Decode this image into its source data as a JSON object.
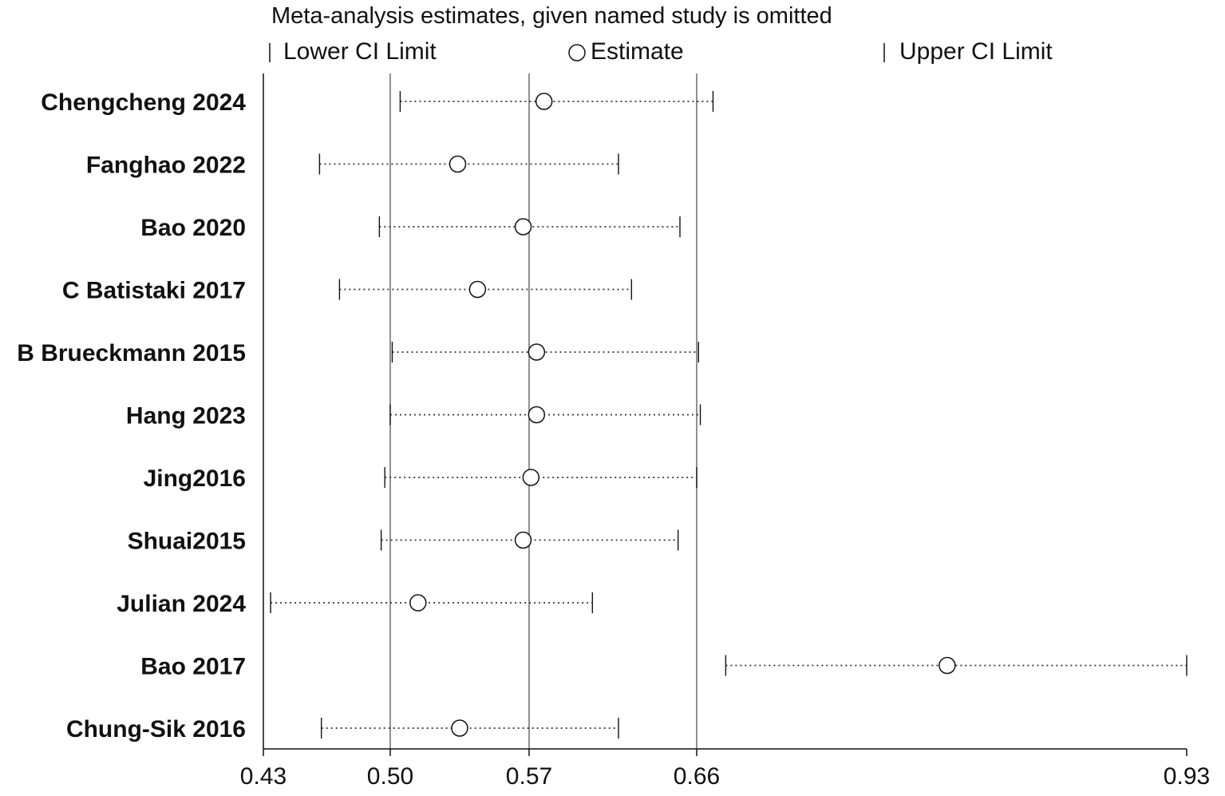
{
  "chart_data": {
    "type": "forest",
    "title": "Meta-analysis estimates, given named study is omitted",
    "legend": {
      "lower": "Lower CI Limit",
      "estimate": "Estimate",
      "upper": "Upper CI Limit"
    },
    "x_ticks": [
      {
        "value": 0.43,
        "label": "0.43"
      },
      {
        "value": 0.5,
        "label": "0.50"
      },
      {
        "value": 0.57,
        "label": "0.57"
      },
      {
        "value": 0.66,
        "label": "0.66"
      },
      {
        "value": 0.93,
        "label": "0.93"
      }
    ],
    "xlim": [
      0.43,
      0.93
    ],
    "reference_lines": [
      0.5,
      0.57,
      0.66
    ],
    "studies": [
      {
        "label": "Chengcheng 2024",
        "lower": 0.505,
        "estimate": 0.578,
        "upper": 0.669
      },
      {
        "label": "Fanghao 2022",
        "lower": 0.461,
        "estimate": 0.534,
        "upper": 0.618
      },
      {
        "label": "Bao 2020",
        "lower": 0.494,
        "estimate": 0.567,
        "upper": 0.651
      },
      {
        "label": "C Batistaki 2017",
        "lower": 0.472,
        "estimate": 0.544,
        "upper": 0.625
      },
      {
        "label": "B Brueckmann 2015",
        "lower": 0.501,
        "estimate": 0.574,
        "upper": 0.661
      },
      {
        "label": "Hang 2023",
        "lower": 0.5,
        "estimate": 0.574,
        "upper": 0.662
      },
      {
        "label": "Jing2016",
        "lower": 0.497,
        "estimate": 0.571,
        "upper": 0.66
      },
      {
        "label": "Shuai2015",
        "lower": 0.495,
        "estimate": 0.567,
        "upper": 0.65
      },
      {
        "label": "Julian 2024",
        "lower": 0.434,
        "estimate": 0.514,
        "upper": 0.604
      },
      {
        "label": "Bao 2017",
        "lower": 0.676,
        "estimate": 0.798,
        "upper": 0.93
      },
      {
        "label": "Chung-Sik 2016",
        "lower": 0.462,
        "estimate": 0.535,
        "upper": 0.618
      }
    ]
  },
  "colors": {
    "ink": "#111111",
    "reference_line": "#555555",
    "dotted": "#333333"
  }
}
